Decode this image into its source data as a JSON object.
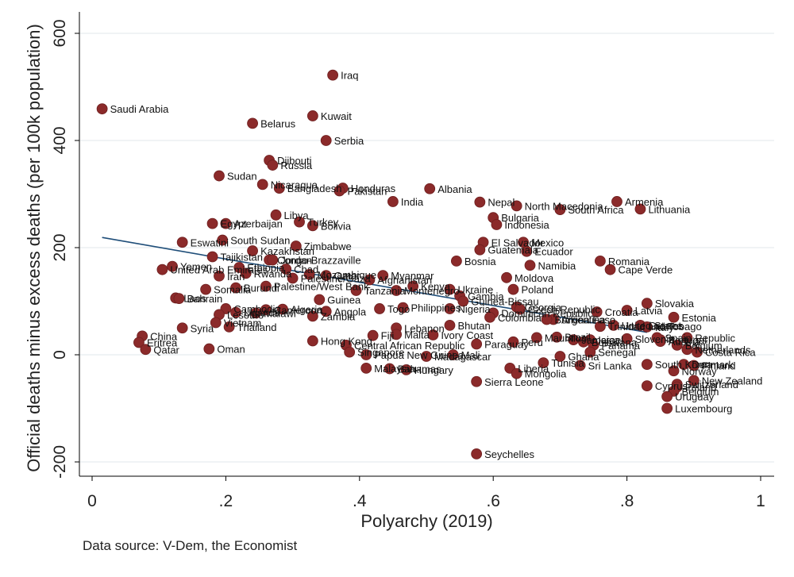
{
  "colors": {
    "marker": "#8b2a2a",
    "marker_edge": "#6e1f1f",
    "fit_line": "#1f4e79",
    "grid": "#e6ecef",
    "axis": "#000000"
  },
  "source_note": "Data source: V-Dem, the Economist",
  "chart_data": {
    "type": "scatter",
    "xlabel": "Polyarchy (2019)",
    "ylabel": "Official deaths minus excess deaths (per 100k population)",
    "xlim": [
      0,
      1
    ],
    "ylim": [
      -200,
      600
    ],
    "x_ticks": [
      {
        "v": 0,
        "label": "0"
      },
      {
        "v": 0.2,
        "label": ".2"
      },
      {
        "v": 0.4,
        "label": ".4"
      },
      {
        "v": 0.6,
        "label": ".6"
      },
      {
        "v": 0.8,
        "label": ".8"
      },
      {
        "v": 1,
        "label": "1"
      }
    ],
    "y_ticks": [
      {
        "v": -200,
        "label": "-200"
      },
      {
        "v": 0,
        "label": "0"
      },
      {
        "v": 200,
        "label": "200"
      },
      {
        "v": 400,
        "label": "400"
      },
      {
        "v": 600,
        "label": "600"
      }
    ],
    "grid": true,
    "fit_line": {
      "x": [
        0.015,
        0.83
      ],
      "y": [
        219,
        42
      ]
    },
    "points": [
      {
        "label": "Iraq",
        "x": 0.36,
        "y": 522
      },
      {
        "label": "Saudi Arabia",
        "x": 0.015,
        "y": 459
      },
      {
        "label": "Kuwait",
        "x": 0.33,
        "y": 446
      },
      {
        "label": "Belarus",
        "x": 0.24,
        "y": 432
      },
      {
        "label": "Serbia",
        "x": 0.35,
        "y": 400
      },
      {
        "label": "Djibouti",
        "x": 0.265,
        "y": 363
      },
      {
        "label": "Russia",
        "x": 0.27,
        "y": 354
      },
      {
        "label": "Sudan",
        "x": 0.19,
        "y": 334
      },
      {
        "label": "Nicaragua",
        "x": 0.255,
        "y": 318
      },
      {
        "label": "Bangladesh",
        "x": 0.28,
        "y": 311
      },
      {
        "label": "Honduras",
        "x": 0.375,
        "y": 311
      },
      {
        "label": "Pakistan",
        "x": 0.37,
        "y": 306
      },
      {
        "label": "Albania",
        "x": 0.505,
        "y": 310
      },
      {
        "label": "India",
        "x": 0.45,
        "y": 286
      },
      {
        "label": "Nepal",
        "x": 0.58,
        "y": 285
      },
      {
        "label": "North Macedonia",
        "x": 0.635,
        "y": 278
      },
      {
        "label": "Armenia",
        "x": 0.785,
        "y": 286
      },
      {
        "label": "South Africa",
        "x": 0.7,
        "y": 271
      },
      {
        "label": "Lithuania",
        "x": 0.82,
        "y": 272
      },
      {
        "label": "Libya",
        "x": 0.275,
        "y": 261
      },
      {
        "label": "Bulgaria",
        "x": 0.6,
        "y": 256
      },
      {
        "label": "Turkey",
        "x": 0.31,
        "y": 248
      },
      {
        "label": "Egypt",
        "x": 0.18,
        "y": 245
      },
      {
        "label": "Azerbaijan",
        "x": 0.2,
        "y": 245
      },
      {
        "label": "Indonesia",
        "x": 0.605,
        "y": 243
      },
      {
        "label": "Bolivia",
        "x": 0.33,
        "y": 241
      },
      {
        "label": "Eswatini",
        "x": 0.135,
        "y": 210
      },
      {
        "label": "South Sudan",
        "x": 0.195,
        "y": 214
      },
      {
        "label": "El Salvador",
        "x": 0.585,
        "y": 210
      },
      {
        "label": "Mexico",
        "x": 0.645,
        "y": 210
      },
      {
        "label": "Zimbabwe",
        "x": 0.305,
        "y": 203
      },
      {
        "label": "Guatemala",
        "x": 0.58,
        "y": 196
      },
      {
        "label": "Ecuador",
        "x": 0.65,
        "y": 193
      },
      {
        "label": "Kazakhstan",
        "x": 0.24,
        "y": 194
      },
      {
        "label": "Tajikistan",
        "x": 0.18,
        "y": 183
      },
      {
        "label": "Congo-Brazzaville",
        "x": 0.265,
        "y": 177
      },
      {
        "label": "Jordan",
        "x": 0.27,
        "y": 177
      },
      {
        "label": "Bosnia",
        "x": 0.545,
        "y": 175
      },
      {
        "label": "Romania",
        "x": 0.76,
        "y": 175
      },
      {
        "label": "Namibia",
        "x": 0.655,
        "y": 167
      },
      {
        "label": "Yemen",
        "x": 0.12,
        "y": 165
      },
      {
        "label": "Cape Verde",
        "x": 0.775,
        "y": 159
      },
      {
        "label": "United Arab Emirates",
        "x": 0.105,
        "y": 159
      },
      {
        "label": "Ethiopia",
        "x": 0.22,
        "y": 163
      },
      {
        "label": "Chad",
        "x": 0.29,
        "y": 160
      },
      {
        "label": "Iran",
        "x": 0.19,
        "y": 147
      },
      {
        "label": "Rwanda",
        "x": 0.23,
        "y": 152
      },
      {
        "label": "Mozambique",
        "x": 0.325,
        "y": 150
      },
      {
        "label": "Palestine/Gaza",
        "x": 0.3,
        "y": 143
      },
      {
        "label": "Moldova",
        "x": 0.62,
        "y": 144
      },
      {
        "label": "Qatar",
        "x": 0.35,
        "y": 148
      },
      {
        "label": "Myanmar",
        "x": 0.435,
        "y": 148
      },
      {
        "label": "Afghanistan",
        "x": 0.415,
        "y": 140
      },
      {
        "label": "Burundi",
        "x": 0.215,
        "y": 125
      },
      {
        "label": "Somalia",
        "x": 0.17,
        "y": 122
      },
      {
        "label": "Palestine/West Bank",
        "x": 0.26,
        "y": 128
      },
      {
        "label": "Kenya",
        "x": 0.48,
        "y": 128
      },
      {
        "label": "Montenegro",
        "x": 0.455,
        "y": 120
      },
      {
        "label": "Tanzania",
        "x": 0.395,
        "y": 120
      },
      {
        "label": "Ukraine",
        "x": 0.535,
        "y": 122
      },
      {
        "label": "Poland",
        "x": 0.63,
        "y": 122
      },
      {
        "label": "Gambia",
        "x": 0.55,
        "y": 110
      },
      {
        "label": "Laos",
        "x": 0.125,
        "y": 106
      },
      {
        "label": "Bahrain",
        "x": 0.13,
        "y": 105
      },
      {
        "label": "Guinea",
        "x": 0.34,
        "y": 103
      },
      {
        "label": "Guinea-Bissau",
        "x": 0.555,
        "y": 100
      },
      {
        "label": "Slovakia",
        "x": 0.83,
        "y": 96
      },
      {
        "label": "Cambodia",
        "x": 0.2,
        "y": 86
      },
      {
        "label": "Algeria",
        "x": 0.285,
        "y": 85
      },
      {
        "label": "Cameroon",
        "x": 0.26,
        "y": 84
      },
      {
        "label": "Angola",
        "x": 0.35,
        "y": 81
      },
      {
        "label": "Togo",
        "x": 0.43,
        "y": 86
      },
      {
        "label": "Philippines",
        "x": 0.465,
        "y": 88
      },
      {
        "label": "Georgia",
        "x": 0.635,
        "y": 89
      },
      {
        "label": "Nigeria",
        "x": 0.535,
        "y": 86
      },
      {
        "label": "Czech Republic",
        "x": 0.64,
        "y": 85
      },
      {
        "label": "Dominican Republic",
        "x": 0.6,
        "y": 78
      },
      {
        "label": "Latvia",
        "x": 0.8,
        "y": 83
      },
      {
        "label": "Croatia",
        "x": 0.755,
        "y": 80
      },
      {
        "label": "Lesotho",
        "x": 0.19,
        "y": 75
      },
      {
        "label": "Uganda",
        "x": 0.215,
        "y": 79
      },
      {
        "label": "Malawi",
        "x": 0.245,
        "y": 78
      },
      {
        "label": "Zambia",
        "x": 0.33,
        "y": 72
      },
      {
        "label": "Colombia",
        "x": 0.595,
        "y": 70
      },
      {
        "label": "Argentina",
        "x": 0.69,
        "y": 66
      },
      {
        "label": "Burkina Faso",
        "x": 0.68,
        "y": 66
      },
      {
        "label": "Estonia",
        "x": 0.87,
        "y": 70
      },
      {
        "label": "Vietnam",
        "x": 0.185,
        "y": 60
      },
      {
        "label": "Thailand",
        "x": 0.205,
        "y": 52
      },
      {
        "label": "Syria",
        "x": 0.135,
        "y": 50
      },
      {
        "label": "Trinidad and Tobago",
        "x": 0.76,
        "y": 53
      },
      {
        "label": "United States",
        "x": 0.78,
        "y": 55
      },
      {
        "label": "Greece",
        "x": 0.82,
        "y": 55
      },
      {
        "label": "Bhutan",
        "x": 0.535,
        "y": 55
      },
      {
        "label": "Lebanon",
        "x": 0.455,
        "y": 50
      },
      {
        "label": "Italy",
        "x": 0.83,
        "y": 52
      },
      {
        "label": "Malta",
        "x": 0.455,
        "y": 38
      },
      {
        "label": "Fiji",
        "x": 0.42,
        "y": 36
      },
      {
        "label": "Ivory Coast",
        "x": 0.51,
        "y": 37
      },
      {
        "label": "China",
        "x": 0.075,
        "y": 35
      },
      {
        "label": "Brazil",
        "x": 0.695,
        "y": 33
      },
      {
        "label": "Mauritius",
        "x": 0.665,
        "y": 32
      },
      {
        "label": "Portugal",
        "x": 0.85,
        "y": 28
      },
      {
        "label": "Austria",
        "x": 0.85,
        "y": 25
      },
      {
        "label": "Israel",
        "x": 0.745,
        "y": 28
      },
      {
        "label": "Jamaica",
        "x": 0.72,
        "y": 28
      },
      {
        "label": "Slovenia",
        "x": 0.8,
        "y": 30
      },
      {
        "label": "Botswana",
        "x": 0.735,
        "y": 24
      },
      {
        "label": "Spain",
        "x": 0.845,
        "y": 32
      },
      {
        "label": "Republic",
        "x": 0.89,
        "y": 32
      },
      {
        "label": "Eritrea",
        "x": 0.07,
        "y": 23
      },
      {
        "label": "Hong Kong",
        "x": 0.33,
        "y": 26
      },
      {
        "label": "Central African Republic",
        "x": 0.38,
        "y": 18
      },
      {
        "label": "Paraguay",
        "x": 0.575,
        "y": 20
      },
      {
        "label": "Peru",
        "x": 0.63,
        "y": 24
      },
      {
        "label": "Panama",
        "x": 0.75,
        "y": 18
      },
      {
        "label": "Belgium",
        "x": 0.875,
        "y": 18
      },
      {
        "label": "Netherlands",
        "x": 0.89,
        "y": 10
      },
      {
        "label": "Qatar",
        "x": 0.08,
        "y": 10
      },
      {
        "label": "Oman",
        "x": 0.175,
        "y": 11
      },
      {
        "label": "Singapore",
        "x": 0.385,
        "y": 5
      },
      {
        "label": "Papua New Guinea",
        "x": 0.41,
        "y": 0
      },
      {
        "label": "Madagascar",
        "x": 0.5,
        "y": -3
      },
      {
        "label": "Costa Rica",
        "x": 0.905,
        "y": 5
      },
      {
        "label": "Senegal",
        "x": 0.745,
        "y": 5
      },
      {
        "label": "Ghana",
        "x": 0.7,
        "y": -3
      },
      {
        "label": "Mali",
        "x": 0.54,
        "y": 0
      },
      {
        "label": "Tunisia",
        "x": 0.675,
        "y": -15
      },
      {
        "label": "South Korea",
        "x": 0.83,
        "y": -18
      },
      {
        "label": "Sri Lanka",
        "x": 0.73,
        "y": -20
      },
      {
        "label": "Denmark",
        "x": 0.885,
        "y": -18
      },
      {
        "label": "Finland",
        "x": 0.9,
        "y": -20
      },
      {
        "label": "Malaysia",
        "x": 0.41,
        "y": -25
      },
      {
        "label": "Bahamas",
        "x": 0.445,
        "y": -26
      },
      {
        "label": "Hungary",
        "x": 0.47,
        "y": -28
      },
      {
        "label": "Liberia",
        "x": 0.625,
        "y": -25
      },
      {
        "label": "Mongolia",
        "x": 0.635,
        "y": -35
      },
      {
        "label": "Norway",
        "x": 0.87,
        "y": -30
      },
      {
        "label": "New Zealand",
        "x": 0.9,
        "y": -48
      },
      {
        "label": "Switzerland",
        "x": 0.875,
        "y": -55
      },
      {
        "label": "Cyprus",
        "x": 0.83,
        "y": -58
      },
      {
        "label": "Sierra Leone",
        "x": 0.575,
        "y": -50
      },
      {
        "label": "Ireland",
        "x": 0.875,
        "y": -60
      },
      {
        "label": "Belgium",
        "x": 0.87,
        "y": -68
      },
      {
        "label": "Uruguay",
        "x": 0.86,
        "y": -78
      },
      {
        "label": "Luxembourg",
        "x": 0.86,
        "y": -100
      },
      {
        "label": "Seychelles",
        "x": 0.575,
        "y": -185
      }
    ]
  }
}
